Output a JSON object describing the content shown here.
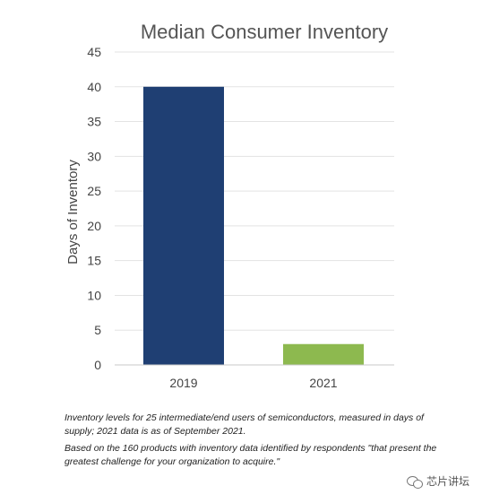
{
  "chart_data": {
    "type": "bar",
    "title": "Median Consumer Inventory",
    "xlabel": "",
    "ylabel": "Days of Inventory",
    "categories": [
      "2019",
      "2021"
    ],
    "values": [
      40,
      3
    ],
    "bar_colors": [
      "#1f3f73",
      "#8db94f"
    ],
    "ylim": [
      0,
      45
    ],
    "yticks": [
      0,
      5,
      10,
      15,
      20,
      25,
      30,
      35,
      40,
      45
    ],
    "grid": true,
    "legend": "none"
  },
  "notes": {
    "line1": "Inventory levels for 25 intermediate/end users of semiconductors, measured in days of supply; 2021 data is as of September 2021.",
    "line2": "Based on the 160 products with inventory data identified by respondents \"that present the greatest challenge for your organization to acquire.\""
  },
  "watermark": {
    "text": "芯片讲坛",
    "icon": "wechat-logo-icon"
  }
}
